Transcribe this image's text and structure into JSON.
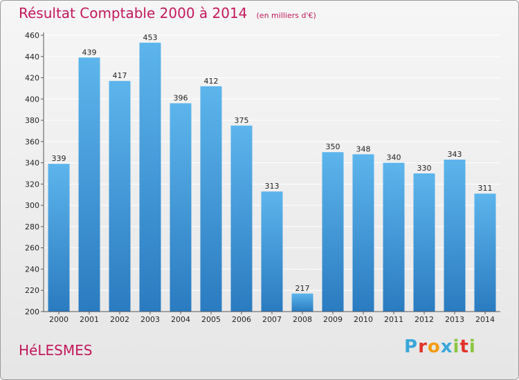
{
  "header": {
    "title": "Résultat Comptable 2000 à 2014",
    "subtitle": "(en milliers d'€)"
  },
  "location": "HéLESMES",
  "brand": {
    "name": "Proxiti",
    "letters": [
      "P",
      "r",
      "o",
      "x",
      "i",
      "t",
      "i"
    ],
    "letter_colors": [
      "#3aa7d9",
      "#e2332b",
      "#f39c12",
      "#3aa7d9",
      "#8cc63f",
      "#e2332b",
      "#8cc63f"
    ]
  },
  "colors": {
    "title": "#c2185b",
    "bar_light": "#5db5ec",
    "bar_dark": "#2a7bc0",
    "grid": "#ffffff"
  },
  "chart_data": {
    "type": "bar",
    "categories": [
      "2000",
      "2001",
      "2002",
      "2003",
      "2004",
      "2005",
      "2006",
      "2007",
      "2008",
      "2009",
      "2010",
      "2011",
      "2012",
      "2013",
      "2014"
    ],
    "values": [
      339,
      439,
      417,
      453,
      396,
      412,
      375,
      313,
      217,
      350,
      348,
      340,
      330,
      343,
      311
    ],
    "title": "Résultat Comptable 2000 à 2014",
    "subtitle": "(en milliers d'€)",
    "xlabel": "",
    "ylabel": "",
    "ylim": [
      200,
      460
    ],
    "yticks": [
      200,
      220,
      240,
      260,
      280,
      300,
      320,
      340,
      360,
      380,
      400,
      420,
      440,
      460
    ],
    "grid": true,
    "legend": "none"
  }
}
